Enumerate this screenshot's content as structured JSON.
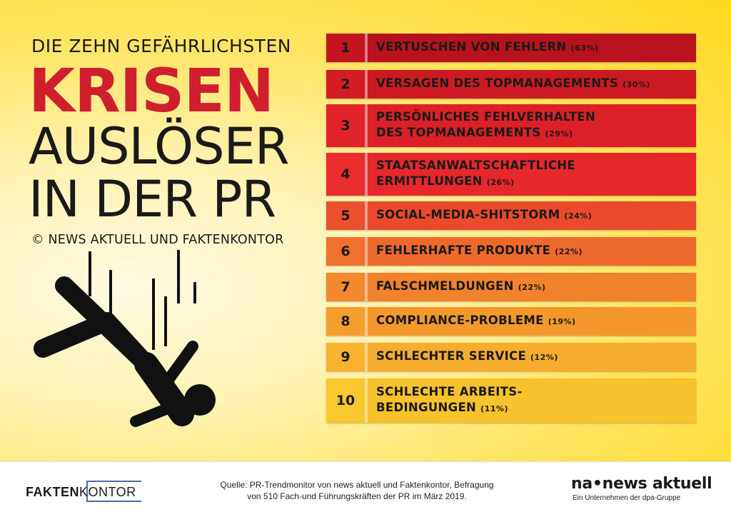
{
  "headline": {
    "line1": "DIE ZEHN GEFÄHRLICHSTEN",
    "line2": "KRISEN",
    "line3": "AUSLÖSER",
    "line4": "IN DER PR",
    "copyright": "© NEWS AKTUELL UND FAKTENKONTOR"
  },
  "icon": "falling-person-icon",
  "ranking": [
    {
      "rank": "1",
      "lines": [
        "VERTUSCHEN VON FEHLERN"
      ],
      "pct": "(63%)",
      "color": "#b8121c",
      "numColor": "#c4141f"
    },
    {
      "rank": "2",
      "lines": [
        "VERSAGEN DES TOPMANAGEMENTS"
      ],
      "pct": "(30%)",
      "color": "#cc1a22",
      "numColor": "#d41c24"
    },
    {
      "rank": "3",
      "lines": [
        "PERSÖNLICHES FEHLVERHALTEN",
        "DES TOPMANAGEMENTS"
      ],
      "pct": "(29%)",
      "color": "#dc2027",
      "numColor": "#e2232a"
    },
    {
      "rank": "4",
      "lines": [
        "STAATSANWALTSCHAFTLICHE",
        "ERMITTLUNGEN"
      ],
      "pct": "(26%)",
      "color": "#e6282b",
      "numColor": "#ea2c2d"
    },
    {
      "rank": "5",
      "lines": [
        "SOCIAL-MEDIA-SHITSTORM"
      ],
      "pct": "(24%)",
      "color": "#ea4a2c",
      "numColor": "#ec502e"
    },
    {
      "rank": "6",
      "lines": [
        "FEHLERHAFTE PRODUKTE"
      ],
      "pct": "(22%)",
      "color": "#ee6a2c",
      "numColor": "#f0702e"
    },
    {
      "rank": "7",
      "lines": [
        "FALSCHMELDUNGEN"
      ],
      "pct": "(22%)",
      "color": "#f1822c",
      "numColor": "#f3882e"
    },
    {
      "rank": "8",
      "lines": [
        "COMPLIANCE-PROBLEME"
      ],
      "pct": "(19%)",
      "color": "#f4982c",
      "numColor": "#f59e2e"
    },
    {
      "rank": "9",
      "lines": [
        "SCHLECHTER SERVICE"
      ],
      "pct": "(12%)",
      "color": "#f6ac2c",
      "numColor": "#f7b22e"
    },
    {
      "rank": "10",
      "lines": [
        "SCHLECHTE ARBEITS-",
        "BEDINGUNGEN"
      ],
      "pct": "(11%)",
      "color": "#f8c22c",
      "numColor": "#f9c72e"
    }
  ],
  "footer": {
    "faktenkontor_bold": "FAKTEN",
    "faktenkontor_light": "KONTOR",
    "source_line1": "Quelle: PR-Trendmonitor von news aktuell und Faktenkontor, Befragung",
    "source_line2": "von 510 Fach-und Führungskräften der PR im März 2019.",
    "na_main": "na•news aktuell",
    "na_sub": "Ein Unternehmen der dpa-Gruppe"
  }
}
